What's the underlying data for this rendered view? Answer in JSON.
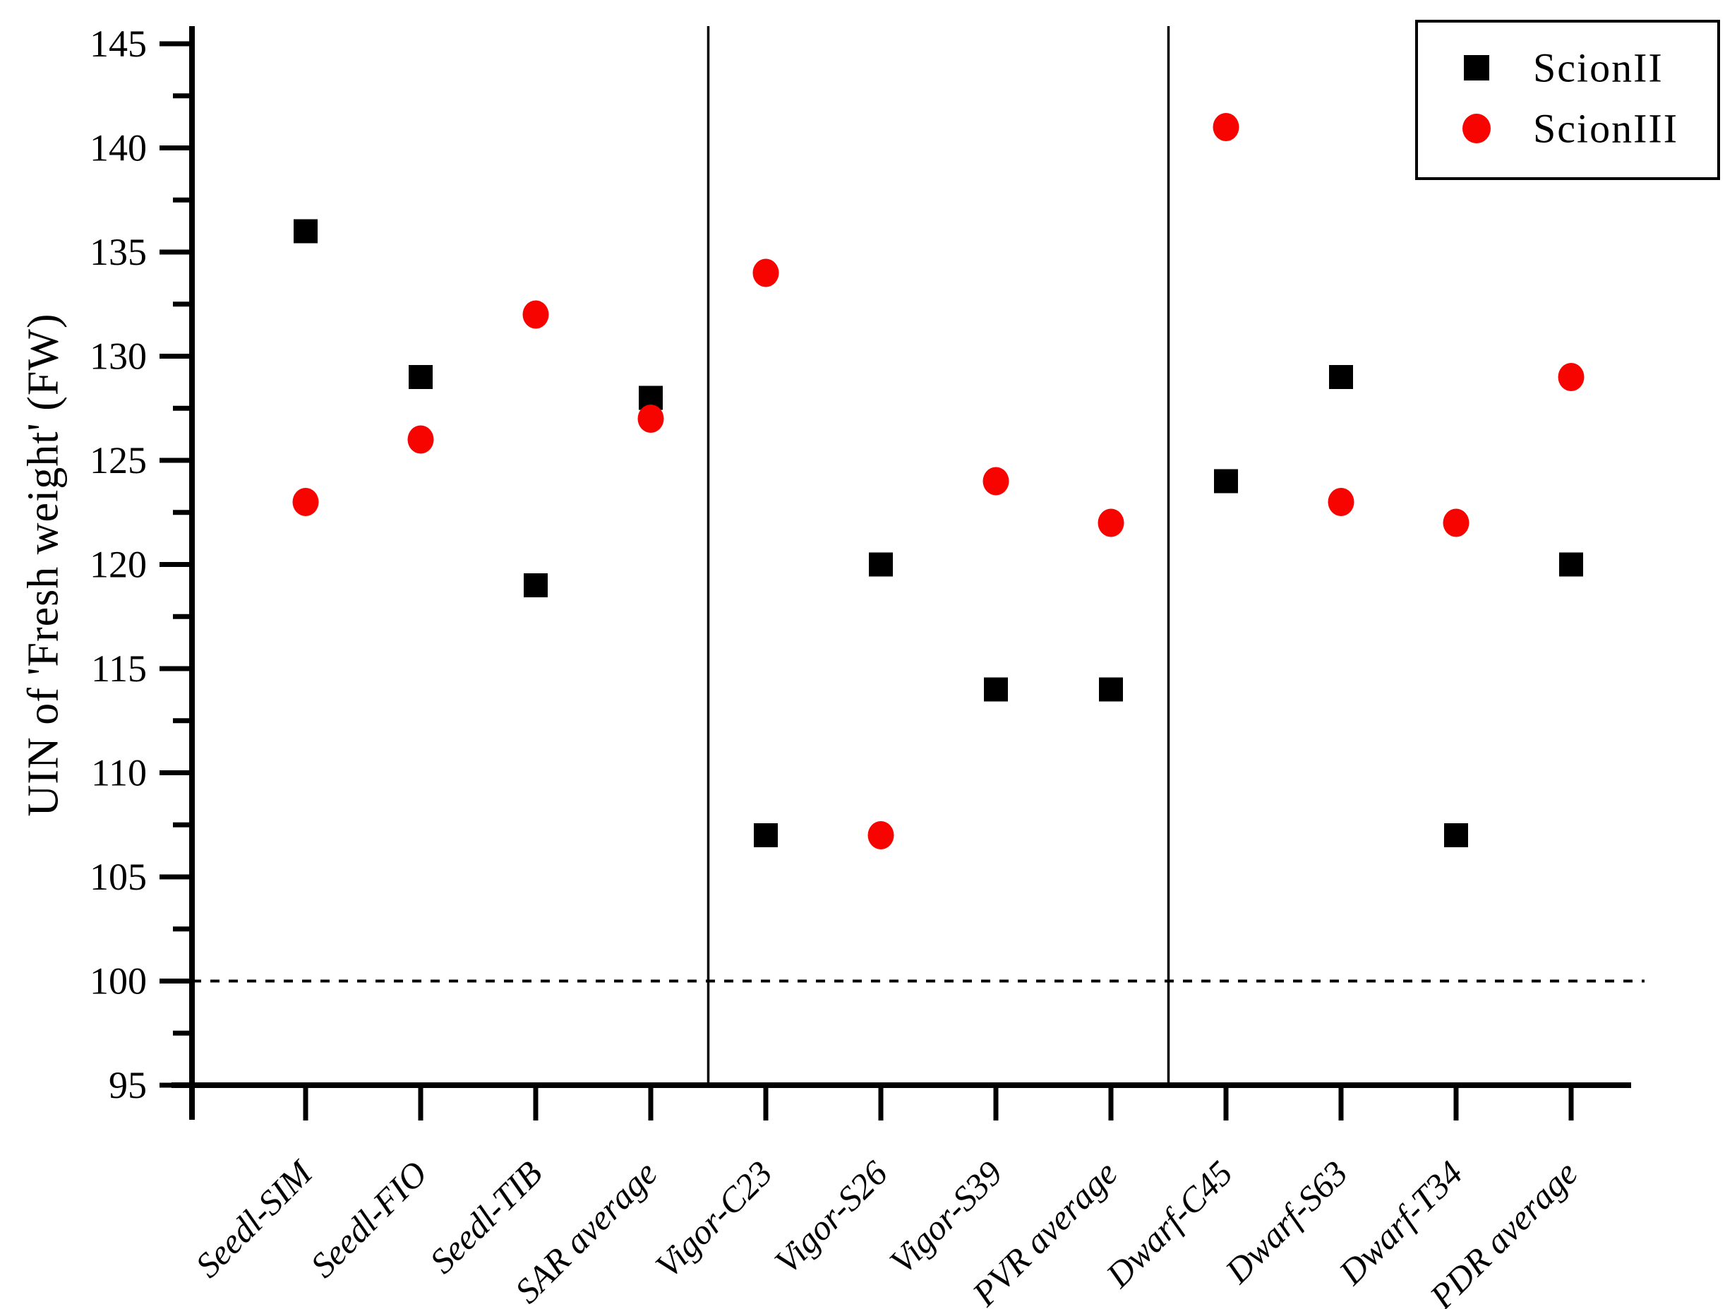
{
  "figure": {
    "background": "#ffffff"
  },
  "chart_data": {
    "type": "scatter",
    "title": "",
    "xlabel": "",
    "ylabel": "UIN of 'Fresh weight' (FW)",
    "categories": [
      "Seedl-SIM",
      "Seedl-FIO",
      "Seedl-TIB",
      "SAR average",
      "Vigor-C23",
      "Vigor-S26",
      "Vigor-S39",
      "PVR average",
      "Dwarf-C45",
      "Dwarf-S63",
      "Dwarf-T34",
      "PDR average"
    ],
    "series": [
      {
        "name": "ScionII",
        "marker": "square",
        "color": "#000000",
        "values": [
          136,
          129,
          119,
          128,
          107,
          120,
          114,
          114,
          124,
          129,
          107,
          120
        ]
      },
      {
        "name": "ScionIII",
        "marker": "circle",
        "color": "#f80400",
        "values": [
          123,
          126,
          132,
          127,
          134,
          107,
          124,
          122,
          141,
          123,
          122,
          129
        ]
      }
    ],
    "yaxis": {
      "min": 95,
      "max": 145,
      "major_step": 5,
      "minor_step": 2.5,
      "tick_labels": [
        "95",
        "100",
        "105",
        "110",
        "115",
        "120",
        "125",
        "130",
        "135",
        "140",
        "145"
      ]
    },
    "reference_line": {
      "value": 100,
      "style": "dashed",
      "color": "#000000"
    },
    "group_dividers_after": [
      3,
      7
    ],
    "legend": {
      "position": "top-right",
      "entries": [
        {
          "label": "ScionII",
          "marker": "square",
          "color": "#000000"
        },
        {
          "label": "ScionIII",
          "marker": "circle",
          "color": "#f80400"
        }
      ]
    },
    "grid": false,
    "axis_color": "#000000",
    "tick_label_color": "#000000"
  }
}
